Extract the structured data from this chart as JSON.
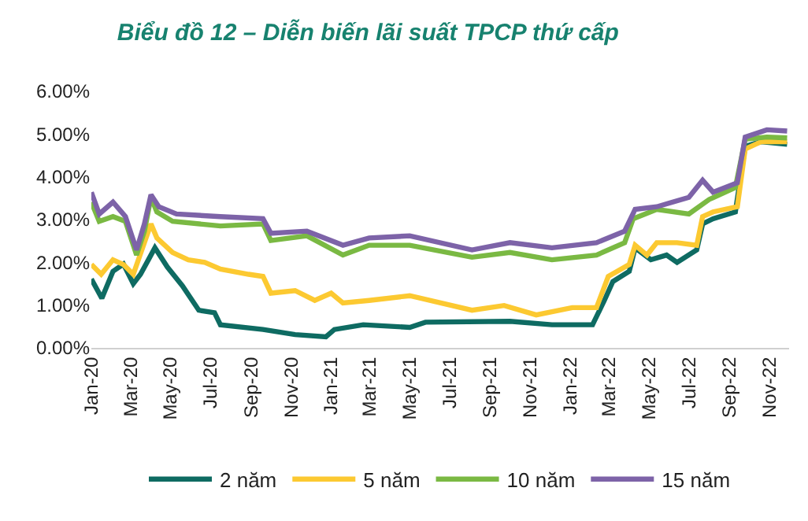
{
  "chart_data": {
    "type": "line",
    "title": "Biểu đồ 12 – Diễn biến lãi suất TPCP thứ cấp",
    "xlim": [
      "2020-01-01",
      "2022-12-01"
    ],
    "xticks": [
      {
        "value": "2020-01-01",
        "label": "Jan-20"
      },
      {
        "value": "2020-03-01",
        "label": "Mar-20"
      },
      {
        "value": "2020-05-01",
        "label": "May-20"
      },
      {
        "value": "2020-07-01",
        "label": "Jul-20"
      },
      {
        "value": "2020-09-01",
        "label": "Sep-20"
      },
      {
        "value": "2020-11-01",
        "label": "Nov-20"
      },
      {
        "value": "2021-01-01",
        "label": "Jan-21"
      },
      {
        "value": "2021-03-01",
        "label": "Mar-21"
      },
      {
        "value": "2021-05-01",
        "label": "May-21"
      },
      {
        "value": "2021-07-01",
        "label": "Jul-21"
      },
      {
        "value": "2021-09-01",
        "label": "Sep-21"
      },
      {
        "value": "2021-11-01",
        "label": "Nov-21"
      },
      {
        "value": "2022-01-01",
        "label": "Jan-22"
      },
      {
        "value": "2022-03-01",
        "label": "Mar-22"
      },
      {
        "value": "2022-05-01",
        "label": "May-22"
      },
      {
        "value": "2022-07-01",
        "label": "Jul-22"
      },
      {
        "value": "2022-09-01",
        "label": "Sep-22"
      },
      {
        "value": "2022-11-01",
        "label": "Nov-22"
      }
    ],
    "ylim": [
      0,
      6
    ],
    "yticks": [
      {
        "value": 0,
        "label": "0.00%"
      },
      {
        "value": 1,
        "label": "1.00%"
      },
      {
        "value": 2,
        "label": "2.00%"
      },
      {
        "value": 3,
        "label": "3.00%"
      },
      {
        "value": 4,
        "label": "4.00%"
      },
      {
        "value": 5,
        "label": "5.00%"
      },
      {
        "value": 6,
        "label": "6.00%"
      }
    ],
    "grid": false,
    "legend": "bottom",
    "marker": "none",
    "line_style": "solid",
    "series": [
      {
        "name": "2 năm",
        "color": "#0e6b62",
        "x": [
          "2020-01-01",
          "2020-01-17",
          "2020-02-03",
          "2020-02-19",
          "2020-03-05",
          "2020-03-16",
          "2020-04-07",
          "2020-04-26",
          "2020-05-19",
          "2020-06-13",
          "2020-07-07",
          "2020-07-16",
          "2020-09-19",
          "2020-11-07",
          "2020-12-24",
          "2021-01-06",
          "2021-02-19",
          "2021-05-01",
          "2021-05-25",
          "2021-10-01",
          "2021-12-04",
          "2022-02-04",
          "2022-02-22",
          "2022-03-07",
          "2022-04-01",
          "2022-04-10",
          "2022-05-04",
          "2022-05-28",
          "2022-06-13",
          "2022-07-13",
          "2022-07-22",
          "2022-08-07",
          "2022-09-10",
          "2022-09-25",
          "2022-10-19",
          "2022-11-28"
        ],
        "values": [
          1.61,
          1.16,
          1.79,
          1.96,
          1.5,
          1.72,
          2.34,
          1.89,
          1.45,
          0.88,
          0.82,
          0.54,
          0.43,
          0.31,
          0.26,
          0.43,
          0.54,
          0.48,
          0.6,
          0.62,
          0.54,
          0.54,
          1.11,
          1.55,
          1.79,
          2.34,
          2.06,
          2.17,
          2.0,
          2.29,
          2.9,
          3.02,
          3.18,
          4.71,
          4.82,
          4.76
        ]
      },
      {
        "name": "5 năm",
        "color": "#fcc931",
        "x": [
          "2020-01-01",
          "2020-01-16",
          "2020-02-03",
          "2020-02-19",
          "2020-03-05",
          "2020-04-01",
          "2020-04-10",
          "2020-05-04",
          "2020-05-28",
          "2020-06-22",
          "2020-07-16",
          "2020-08-28",
          "2020-09-19",
          "2020-10-01",
          "2020-11-07",
          "2020-12-07",
          "2021-01-01",
          "2021-01-19",
          "2021-02-28",
          "2021-05-01",
          "2021-08-04",
          "2021-09-22",
          "2021-11-10",
          "2022-01-04",
          "2022-02-10",
          "2022-02-28",
          "2022-04-01",
          "2022-04-10",
          "2022-04-28",
          "2022-05-13",
          "2022-06-13",
          "2022-07-13",
          "2022-07-22",
          "2022-08-07",
          "2022-09-13",
          "2022-09-25",
          "2022-10-19",
          "2022-11-28"
        ],
        "values": [
          1.95,
          1.72,
          2.06,
          1.95,
          1.72,
          2.9,
          2.57,
          2.23,
          2.06,
          2.0,
          1.84,
          1.72,
          1.67,
          1.28,
          1.34,
          1.11,
          1.28,
          1.05,
          1.11,
          1.22,
          0.88,
          0.99,
          0.77,
          0.94,
          0.94,
          1.67,
          1.95,
          2.4,
          2.17,
          2.46,
          2.46,
          2.4,
          3.07,
          3.18,
          3.3,
          4.65,
          4.82,
          4.82
        ]
      },
      {
        "name": "10 năm",
        "color": "#7ab943",
        "x": [
          "2020-01-01",
          "2020-01-13",
          "2020-02-03",
          "2020-02-22",
          "2020-03-10",
          "2020-03-22",
          "2020-04-01",
          "2020-04-10",
          "2020-05-04",
          "2020-07-16",
          "2020-09-19",
          "2020-10-01",
          "2020-11-25",
          "2021-01-19",
          "2021-02-28",
          "2021-05-01",
          "2021-08-04",
          "2021-10-01",
          "2021-12-04",
          "2022-02-10",
          "2022-03-25",
          "2022-04-07",
          "2022-05-13",
          "2022-07-01",
          "2022-08-01",
          "2022-09-10",
          "2022-09-25",
          "2022-10-28",
          "2022-11-28"
        ],
        "values": [
          3.41,
          2.96,
          3.07,
          2.96,
          2.17,
          2.73,
          3.52,
          3.18,
          2.96,
          2.85,
          2.9,
          2.51,
          2.62,
          2.17,
          2.4,
          2.4,
          2.12,
          2.23,
          2.06,
          2.17,
          2.46,
          3.02,
          3.24,
          3.13,
          3.47,
          3.75,
          4.88,
          4.93,
          4.91
        ]
      },
      {
        "name": "15 năm",
        "color": "#7d63a8",
        "x": [
          "2020-01-01",
          "2020-01-13",
          "2020-02-03",
          "2020-02-22",
          "2020-03-10",
          "2020-03-22",
          "2020-04-01",
          "2020-04-13",
          "2020-05-10",
          "2020-07-16",
          "2020-09-19",
          "2020-10-01",
          "2020-11-25",
          "2021-01-19",
          "2021-02-28",
          "2021-05-01",
          "2021-08-04",
          "2021-10-01",
          "2021-12-04",
          "2022-02-10",
          "2022-03-25",
          "2022-04-10",
          "2022-05-13",
          "2022-07-01",
          "2022-07-22",
          "2022-08-07",
          "2022-09-13",
          "2022-09-25",
          "2022-10-28",
          "2022-11-28"
        ],
        "values": [
          3.64,
          3.13,
          3.41,
          3.07,
          2.29,
          2.9,
          3.58,
          3.3,
          3.13,
          3.07,
          3.02,
          2.68,
          2.73,
          2.4,
          2.57,
          2.62,
          2.29,
          2.46,
          2.34,
          2.46,
          2.73,
          3.24,
          3.3,
          3.52,
          3.92,
          3.64,
          3.86,
          4.93,
          5.1,
          5.07
        ]
      }
    ]
  }
}
